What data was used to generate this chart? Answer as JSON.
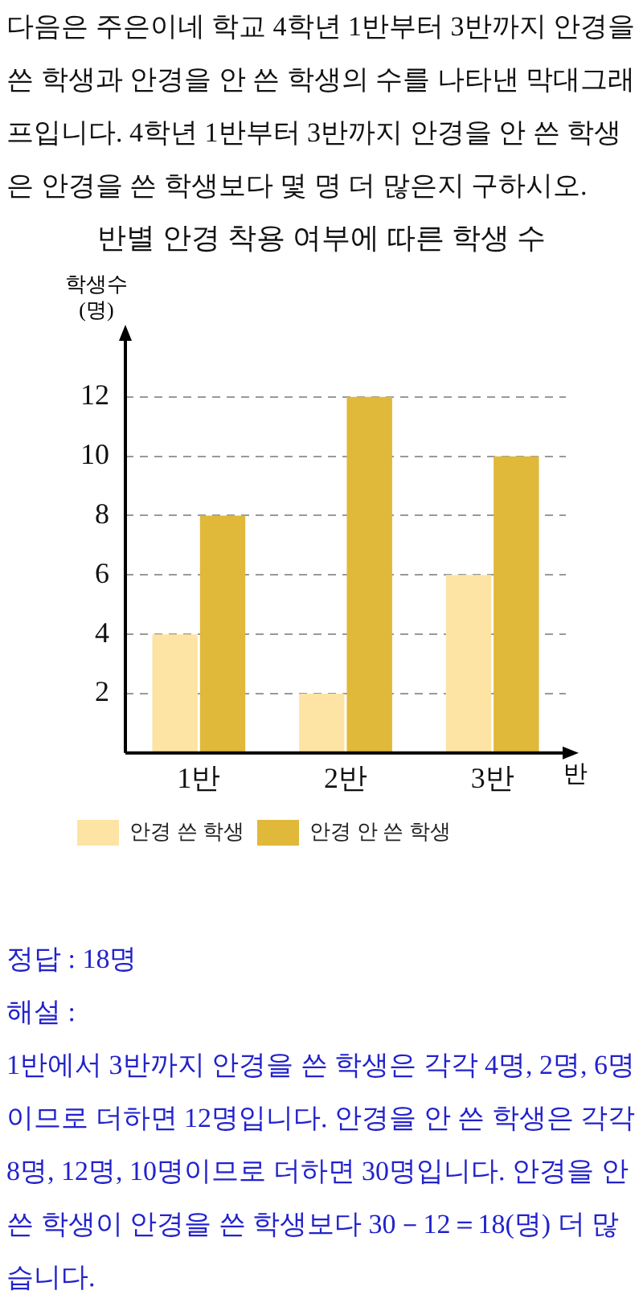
{
  "chart_data": {
    "type": "bar",
    "title": "반별 안경 착용 여부에 따른 학생 수",
    "xlabel": "반",
    "ylabel": "학생수 (명)",
    "categories": [
      "1반",
      "2반",
      "3반"
    ],
    "series": [
      {
        "name": "안경 쓴 학생",
        "color": "#fde4a5",
        "values": [
          4,
          2,
          6
        ]
      },
      {
        "name": "안경 안 쓴 학생",
        "color": "#e0b83a",
        "values": [
          8,
          12,
          10
        ]
      }
    ],
    "ylim": [
      0,
      14
    ],
    "yticks": [
      2,
      4,
      6,
      8,
      10,
      12
    ],
    "grid": "y",
    "line_style": "dashed",
    "legend": "bottom",
    "annotations": [
      "다음은 주은이네 학교 4학년 1반부터 3반까지 안경을 쓴 학생과 안경을 안 쓴 학생의 수를 나타낸 막대그래프입니다. 4학년 1반부터 3반까지 안경을 안 쓴 학생은 안경을 쓴 학생보다 몇 명 더 많은지 구하시오.",
      "정답 : 18명",
      "해설 :",
      "1반에서 3반까지 안경을 쓴 학생은 각각 4명, 2명, 6명이므로 더하면 12명입니다. 안경을 안 쓴 학생은 각각 8명, 12명, 10명이므로 더하면 30명입니다. 안경을 안 쓴 학생이 안경을 쓴 학생보다 30－12＝18(명) 더 많습니다."
    ]
  }
}
